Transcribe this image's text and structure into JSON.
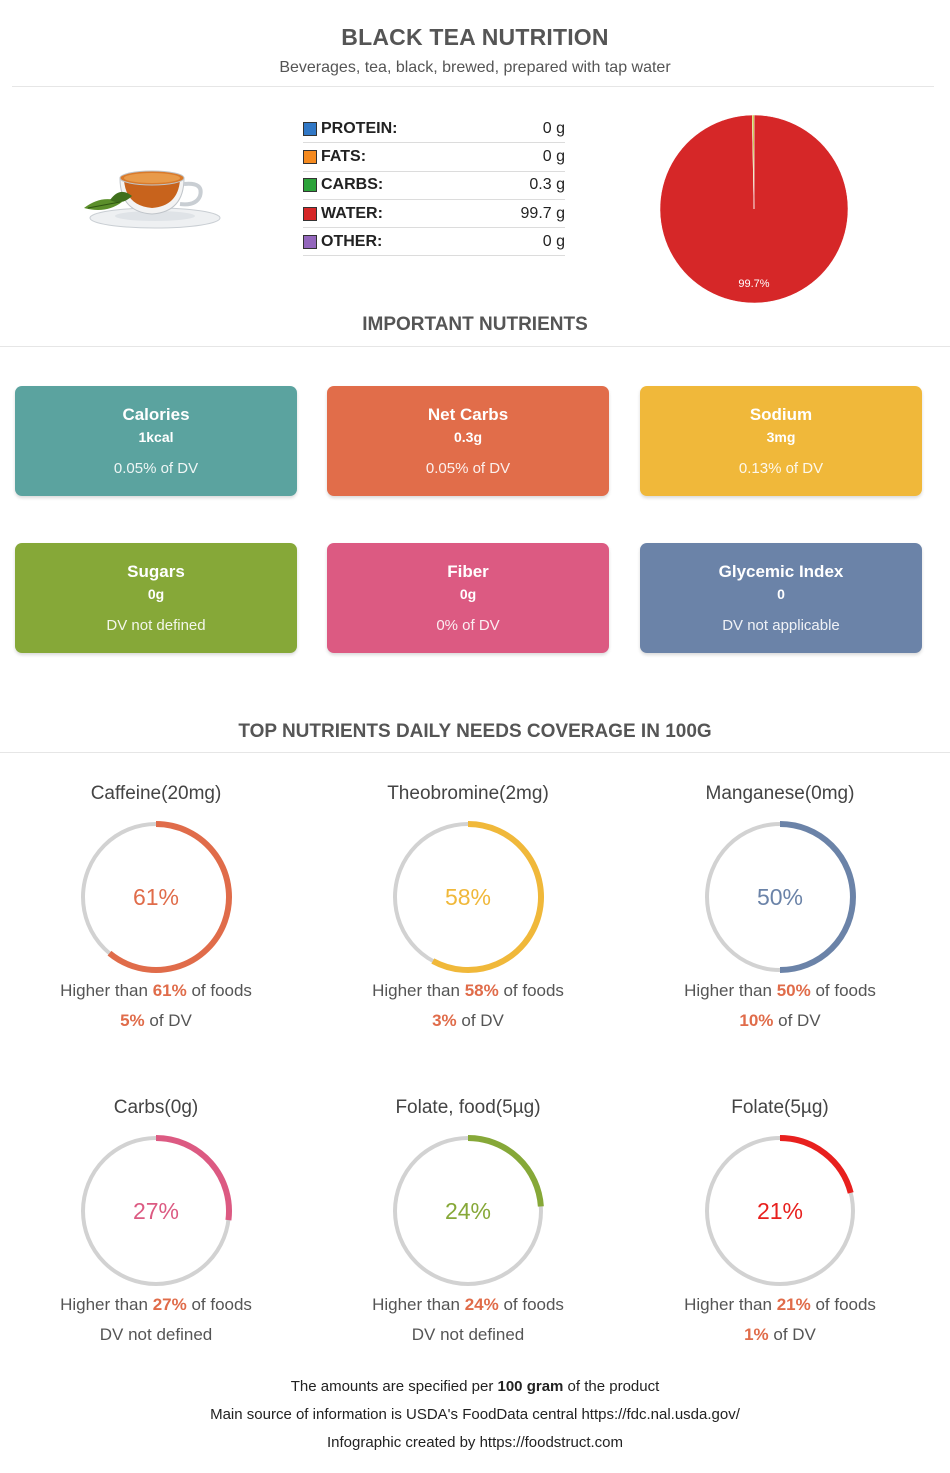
{
  "header": {
    "title": "BLACK TEA NUTRITION",
    "subtitle": "Beverages, tea, black, brewed, prepared with tap water"
  },
  "macros": [
    {
      "label": "PROTEIN:",
      "value": "0 g",
      "color": "#3178c6"
    },
    {
      "label": "FATS:",
      "value": "0 g",
      "color": "#f58a1f"
    },
    {
      "label": "CARBS:",
      "value": "0.3 g",
      "color": "#2ca33a"
    },
    {
      "label": "WATER:",
      "value": "99.7 g",
      "color": "#d62728"
    },
    {
      "label": "OTHER:",
      "value": "0 g",
      "color": "#9467bd"
    }
  ],
  "chart_data": {
    "type": "pie",
    "slices": [
      {
        "name": "WATER",
        "value": 99.7,
        "color": "#d62728"
      },
      {
        "name": "CARBS",
        "value": 0.3,
        "color": "#bcbd22"
      }
    ],
    "labels": [
      "99.7%"
    ]
  },
  "important": {
    "title": "IMPORTANT NUTRIENTS",
    "cards": [
      {
        "name": "Calories",
        "amount": "1kcal",
        "dv": "0.05% of DV",
        "color": "#5ba39f"
      },
      {
        "name": "Net Carbs",
        "amount": "0.3g",
        "dv": "0.05% of DV",
        "color": "#e16d4a"
      },
      {
        "name": "Sodium",
        "amount": "3mg",
        "dv": "0.13% of DV",
        "color": "#f0b83a"
      },
      {
        "name": "Sugars",
        "amount": "0g",
        "dv": "DV not defined",
        "color": "#86a838"
      },
      {
        "name": "Fiber",
        "amount": "0g",
        "dv": "0% of DV",
        "color": "#dc5a82"
      },
      {
        "name": "Glycemic Index",
        "amount": "0",
        "dv": "DV not applicable",
        "color": "#6b83a8"
      }
    ]
  },
  "coverage": {
    "title": "TOP NUTRIENTS DAILY NEEDS COVERAGE IN 100G",
    "items": [
      {
        "title": "Caffeine(20mg)",
        "percent": 61,
        "percent_label": "61%",
        "higher_prefix": "Higher than ",
        "higher_value": "61%",
        "higher_suffix": " of foods",
        "dv_value": "5%",
        "dv_suffix": " of DV",
        "color": "#e06c4a"
      },
      {
        "title": "Theobromine(2mg)",
        "percent": 58,
        "percent_label": "58%",
        "higher_prefix": "Higher than ",
        "higher_value": "58%",
        "higher_suffix": " of foods",
        "dv_value": "3%",
        "dv_suffix": " of DV",
        "color": "#f0b83a"
      },
      {
        "title": "Manganese(0mg)",
        "percent": 50,
        "percent_label": "50%",
        "higher_prefix": "Higher than ",
        "higher_value": "50%",
        "higher_suffix": " of foods",
        "dv_value": "10%",
        "dv_suffix": " of DV",
        "color": "#6b83a8"
      },
      {
        "title": "Carbs(0g)",
        "percent": 27,
        "percent_label": "27%",
        "higher_prefix": "Higher than ",
        "higher_value": "27%",
        "higher_suffix": " of foods",
        "dv_value": "",
        "dv_suffix": "DV not defined",
        "color": "#dc5a82"
      },
      {
        "title": "Folate, food(5µg)",
        "percent": 24,
        "percent_label": "24%",
        "higher_prefix": "Higher than ",
        "higher_value": "24%",
        "higher_suffix": " of foods",
        "dv_value": "",
        "dv_suffix": "DV not defined",
        "color": "#86a838"
      },
      {
        "title": "Folate(5µg)",
        "percent": 21,
        "percent_label": "21%",
        "higher_prefix": "Higher than ",
        "higher_value": "21%",
        "higher_suffix": " of foods",
        "dv_value": "1%",
        "dv_suffix": " of DV",
        "color": "#e8201e"
      }
    ]
  },
  "footer": {
    "line1_prefix": "The amounts are specified per ",
    "line1_bold": "100 gram",
    "line1_suffix": " of the product",
    "line2": "Main source of information is USDA's FoodData central https://fdc.nal.usda.gov/",
    "line3": "Infographic created by https://foodstruct.com"
  }
}
